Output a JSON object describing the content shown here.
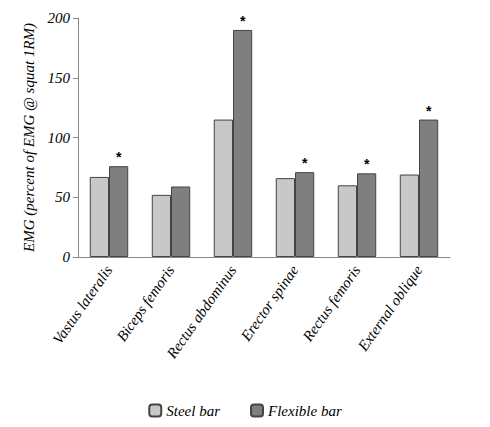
{
  "chart_data": {
    "type": "bar",
    "y_label": "EMG (percent of EMG @ squat 1RM)",
    "categories": [
      "Vastus lateralis",
      "Biceps femoris",
      "Rectus abdominus",
      "Erector spinae",
      "Rectus femoris",
      "External oblique"
    ],
    "series": [
      {
        "name": "Steel bar",
        "color": "#c8c8c8",
        "values": [
          67,
          52,
          115,
          66,
          60,
          69
        ]
      },
      {
        "name": "Flexible bar",
        "color": "#7f7f7f",
        "values": [
          76,
          59,
          190,
          71,
          70,
          115
        ],
        "annotations": [
          "*",
          null,
          "*",
          "*",
          "*",
          "*"
        ]
      }
    ],
    "ylim": [
      0,
      200
    ],
    "yticks": [
      0,
      50,
      100,
      150,
      200
    ],
    "grid": false,
    "legend": "bottom"
  }
}
